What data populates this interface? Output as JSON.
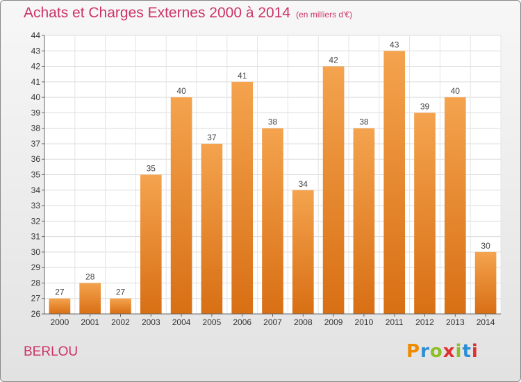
{
  "header": {
    "title": "Achats et Charges Externes 2000 à 2014",
    "subtitle": "(en milliers d'€)"
  },
  "footer": {
    "commune": "BERLOU",
    "logo": "Proxiti"
  },
  "colors": {
    "bar_top": "#f4a34e",
    "bar_bottom": "#d86f14",
    "title": "#cc3366",
    "logo_letters": [
      "#f08a00",
      "#2a8fd6",
      "#8cbf26",
      "#e03030",
      "#8cbf26",
      "#2a8fd6",
      "#e03030"
    ]
  },
  "chart_data": {
    "type": "bar",
    "title": "Achats et Charges Externes 2000 à 2014",
    "subtitle": "(en milliers d'€)",
    "categories": [
      "2000",
      "2001",
      "2002",
      "2003",
      "2004",
      "2005",
      "2006",
      "2007",
      "2008",
      "2009",
      "2010",
      "2011",
      "2012",
      "2013",
      "2014"
    ],
    "values": [
      27,
      28,
      27,
      35,
      40,
      37,
      41,
      38,
      34,
      42,
      38,
      43,
      39,
      40,
      30
    ],
    "ylim": [
      26,
      44
    ],
    "yticks": [
      26,
      27,
      28,
      29,
      30,
      31,
      32,
      33,
      34,
      35,
      36,
      37,
      38,
      39,
      40,
      41,
      42,
      43,
      44
    ],
    "grid": true,
    "xlabel": "",
    "ylabel": ""
  }
}
